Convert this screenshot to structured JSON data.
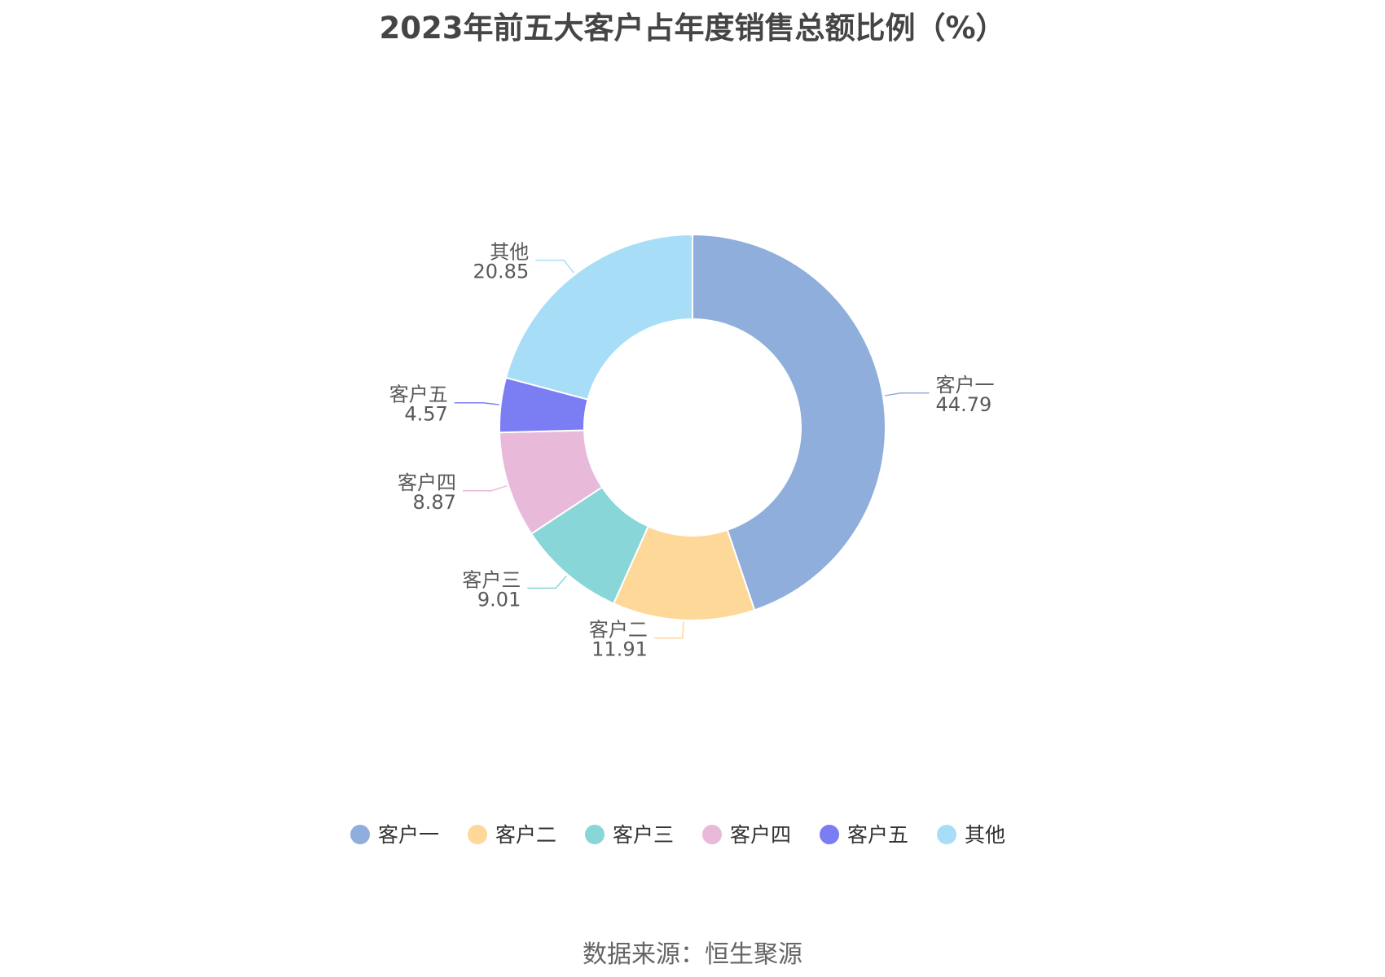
{
  "title": "2023年前五大客户占年度销售总额比例（%）",
  "source": "数据来源：恒生聚源",
  "chart_data": {
    "type": "pie",
    "donut": true,
    "title": "2023年前五大客户占年度销售总额比例（%）",
    "categories": [
      "客户一",
      "客户二",
      "客户三",
      "客户四",
      "客户五",
      "其他"
    ],
    "values": [
      44.79,
      11.91,
      9.01,
      8.87,
      4.57,
      20.85
    ],
    "value_labels": [
      "44.79",
      "11.91",
      "9.01",
      "8.87",
      "4.57",
      "20.85"
    ],
    "colors": [
      "#8faedb",
      "#fdd898",
      "#89d6d8",
      "#e8b9d9",
      "#7b7df2",
      "#a8ddf8"
    ],
    "legend_position": "bottom"
  }
}
